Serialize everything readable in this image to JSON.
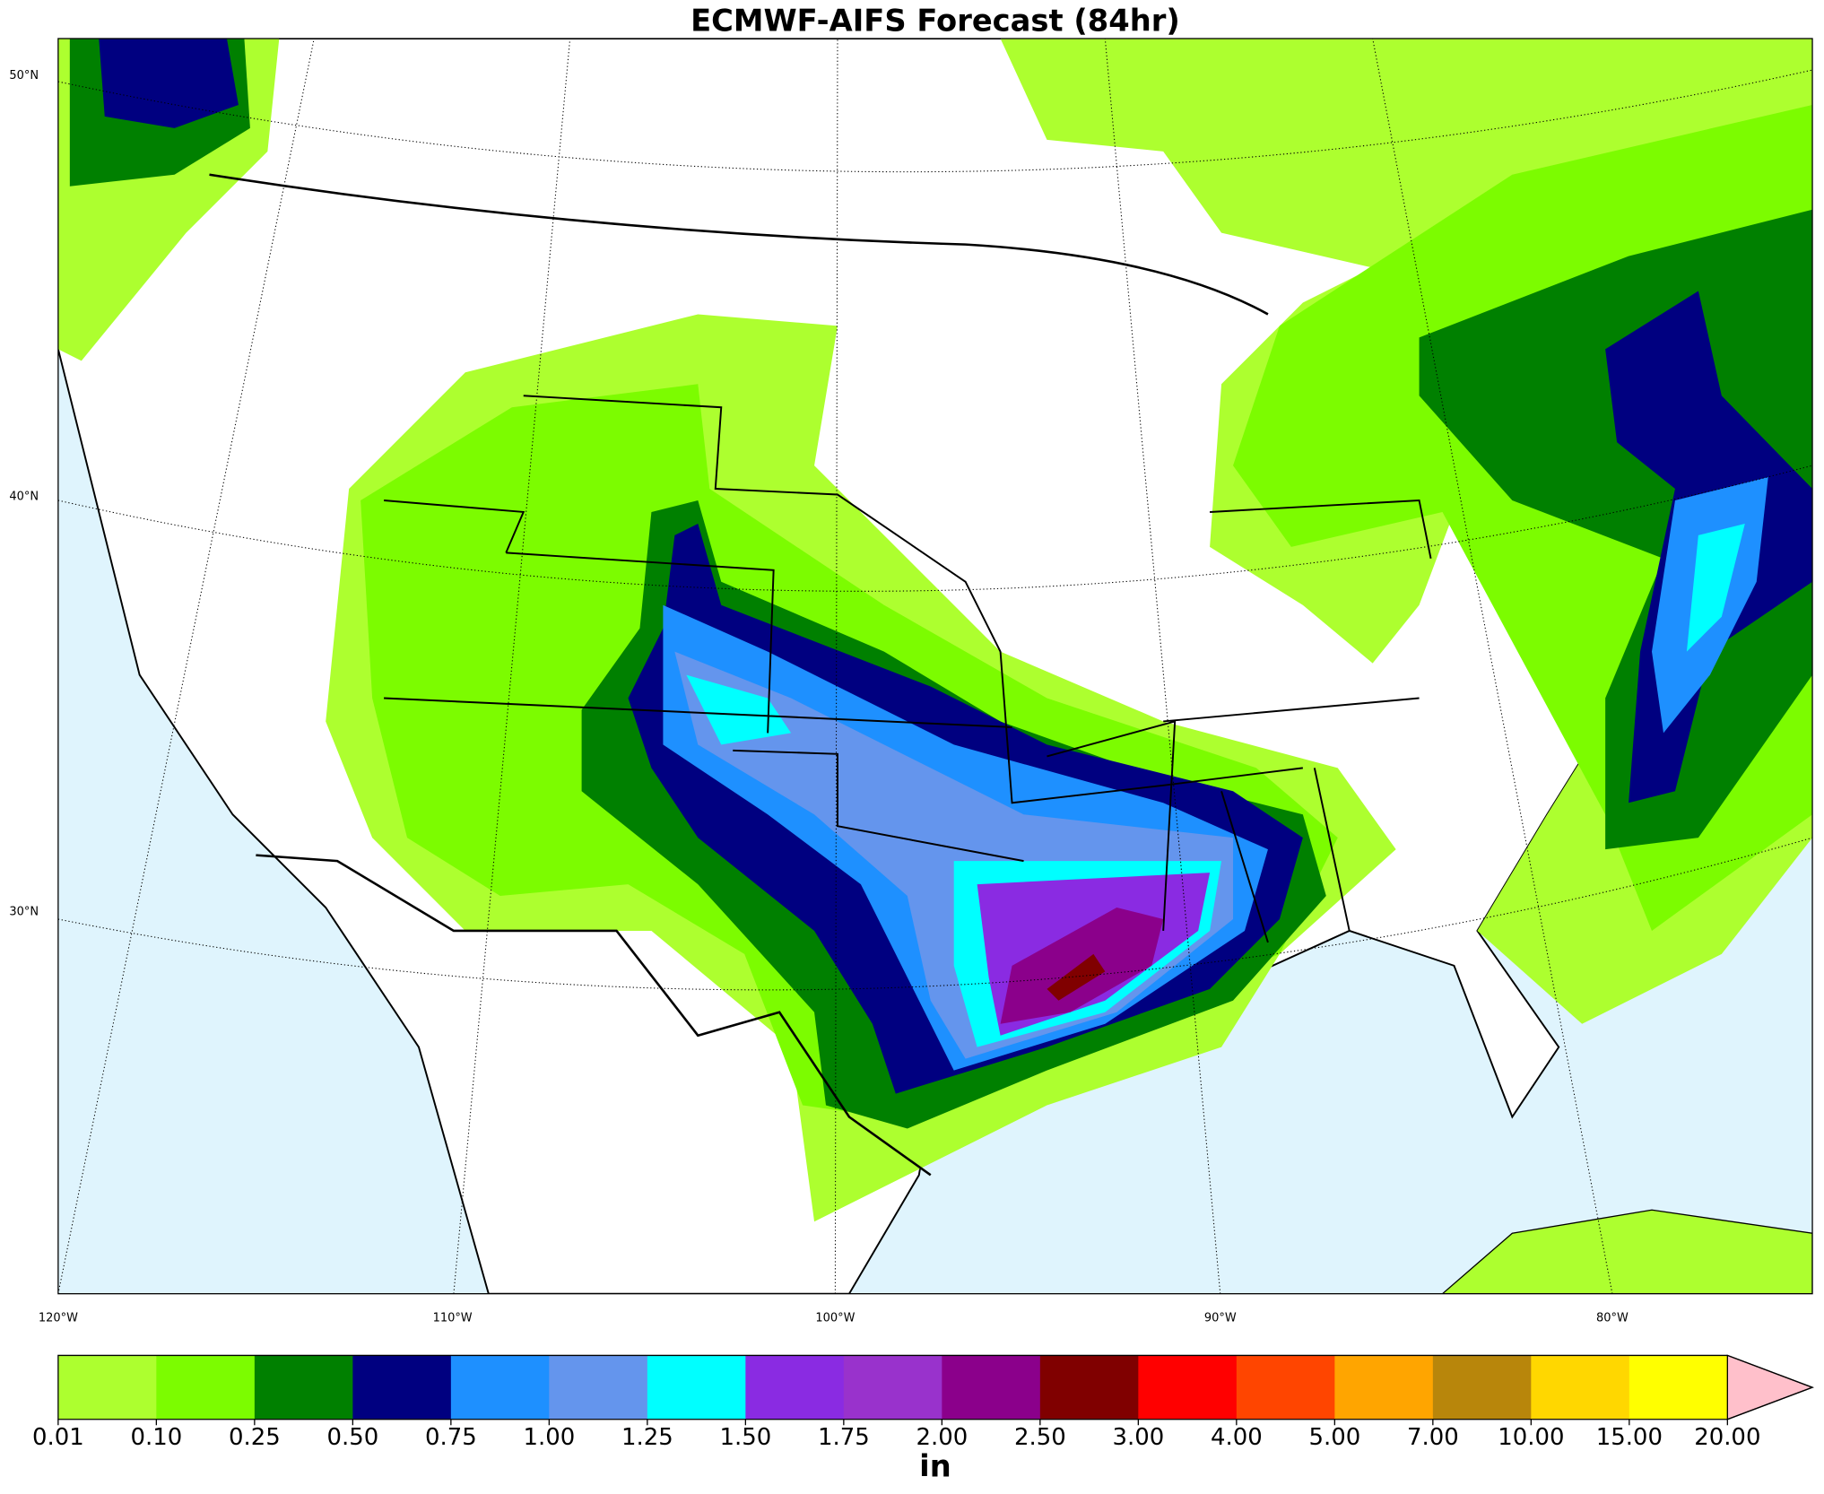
{
  "title": "ECMWF-AIFS Forecast (84hr)",
  "lat_labels": [
    "50°N",
    "40°N",
    "30°N"
  ],
  "lon_labels": [
    "120°W",
    "110°W",
    "100°W",
    "90°W",
    "80°W"
  ],
  "colorbar": {
    "unit": "in",
    "ticks": [
      {
        "value": 0.01,
        "label": "0.01"
      },
      {
        "value": 0.1,
        "label": "0.10"
      },
      {
        "value": 0.25,
        "label": "0.25"
      },
      {
        "value": 0.5,
        "label": "0.50"
      },
      {
        "value": 0.75,
        "label": "0.75"
      },
      {
        "value": 1,
        "label": "1.00"
      },
      {
        "value": 1.25,
        "label": "1.25"
      },
      {
        "value": 1.5,
        "label": "1.50"
      },
      {
        "value": 1.75,
        "label": "1.75"
      },
      {
        "value": 2,
        "label": "2.00"
      },
      {
        "value": 2.5,
        "label": "2.50"
      },
      {
        "value": 3,
        "label": "3.00"
      },
      {
        "value": 4,
        "label": "4.00"
      },
      {
        "value": 5,
        "label": "5.00"
      },
      {
        "value": 7,
        "label": "7.00"
      },
      {
        "value": 10,
        "label": "10.00"
      },
      {
        "value": 15,
        "label": "15.00"
      },
      {
        "value": 20,
        "label": "20.00"
      }
    ],
    "colors": [
      "#adff2f",
      "#7cfc00",
      "#008000",
      "#000080",
      "#1e90ff",
      "#6495ed",
      "#00ffff",
      "#8a2be2",
      "#9932cc",
      "#8b008b",
      "#800000",
      "#ff0000",
      "#ff4500",
      "#ffa500",
      "#b8860b",
      "#ffd700",
      "#ffff00"
    ],
    "extend_color": "#ffc0cb"
  }
}
